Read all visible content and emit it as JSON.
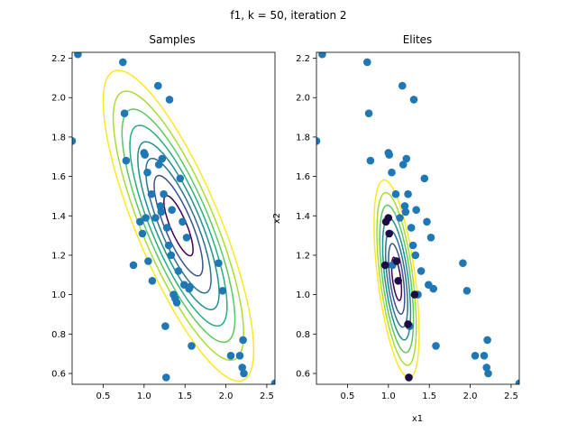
{
  "figure": {
    "suptitle": "f1, k = 50, iteration 2"
  },
  "colors": {
    "sample_point": "#1f77b4",
    "elite_point": "#1b0c41",
    "contour_levels": [
      "#440154",
      "#3b528b",
      "#2c728e",
      "#21908d",
      "#27ad81",
      "#5dc863",
      "#aadc32",
      "#fde725"
    ]
  },
  "chart_data": [
    {
      "type": "scatter",
      "title": "Samples",
      "xlabel": "",
      "ylabel": "",
      "xlim": [
        0.12,
        2.6
      ],
      "ylim": [
        0.545,
        2.23
      ],
      "xticks": [
        "0.5",
        "1.0",
        "1.5",
        "2.0",
        "2.5"
      ],
      "yticks": [
        "0.6",
        "0.8",
        "1.0",
        "1.2",
        "1.4",
        "1.6",
        "1.8",
        "2.0",
        "2.2"
      ],
      "contour": {
        "center": [
          1.42,
          1.35
        ],
        "sx": 0.42,
        "sy": 0.36,
        "rho": -0.8,
        "levels": [
          0.18,
          0.5,
          0.9,
          1.4,
          2.0,
          2.7,
          3.6,
          4.8
        ]
      },
      "series": [
        {
          "points": [
            [
              0.12,
              1.78
            ],
            [
              0.19,
              2.22
            ],
            [
              0.74,
              2.18
            ],
            [
              0.76,
              1.92
            ],
            [
              0.78,
              1.68
            ],
            [
              0.87,
              1.15
            ],
            [
              0.95,
              1.37
            ],
            [
              0.98,
              1.31
            ],
            [
              1.0,
              1.72
            ],
            [
              1.01,
              1.71
            ],
            [
              1.02,
              1.39
            ],
            [
              1.04,
              1.62
            ],
            [
              1.05,
              1.17
            ],
            [
              1.09,
              1.51
            ],
            [
              1.1,
              1.07
            ],
            [
              1.14,
              1.39
            ],
            [
              1.17,
              2.06
            ],
            [
              1.18,
              1.66
            ],
            [
              1.2,
              1.45
            ],
            [
              1.21,
              1.42
            ],
            [
              1.22,
              1.69
            ],
            [
              1.24,
              1.51
            ],
            [
              1.26,
              0.84
            ],
            [
              1.27,
              0.58
            ],
            [
              1.28,
              1.34
            ],
            [
              1.3,
              1.25
            ],
            [
              1.31,
              1.99
            ],
            [
              1.33,
              1.2
            ],
            [
              1.34,
              1.43
            ],
            [
              1.36,
              1.0
            ],
            [
              1.38,
              0.98
            ],
            [
              1.4,
              0.96
            ],
            [
              1.42,
              1.12
            ],
            [
              1.44,
              1.59
            ],
            [
              1.47,
              1.37
            ],
            [
              1.49,
              1.05
            ],
            [
              1.52,
              1.29
            ],
            [
              1.55,
              1.03
            ],
            [
              1.56,
              1.04
            ],
            [
              1.58,
              0.74
            ],
            [
              1.91,
              1.16
            ],
            [
              1.96,
              1.02
            ],
            [
              2.06,
              0.69
            ],
            [
              2.17,
              0.69
            ],
            [
              2.2,
              0.63
            ],
            [
              2.21,
              0.77
            ],
            [
              2.22,
              0.6
            ],
            [
              2.6,
              0.55
            ]
          ]
        }
      ]
    },
    {
      "type": "scatter",
      "title": "Elites",
      "xlabel": "x1",
      "ylabel": "x2",
      "xlim": [
        0.12,
        2.6
      ],
      "ylim": [
        0.545,
        2.23
      ],
      "xticks": [
        "0.5",
        "1.0",
        "1.5",
        "2.0",
        "2.5"
      ],
      "yticks": [
        "0.6",
        "0.8",
        "1.0",
        "1.2",
        "1.4",
        "1.6",
        "1.8",
        "2.0",
        "2.2"
      ],
      "contour": {
        "center": [
          1.1,
          1.08
        ],
        "sx": 0.11,
        "sy": 0.2,
        "rho": -0.55,
        "levels": [
          0.3,
          0.8,
          1.5,
          2.4,
          3.5,
          4.8,
          6.3
        ]
      },
      "series": [
        {
          "points": [
            [
              0.12,
              1.78
            ],
            [
              0.19,
              2.22
            ],
            [
              0.74,
              2.18
            ],
            [
              0.76,
              1.92
            ],
            [
              0.78,
              1.68
            ],
            [
              1.0,
              1.72
            ],
            [
              1.01,
              1.71
            ],
            [
              1.04,
              1.62
            ],
            [
              1.05,
              1.15
            ],
            [
              1.09,
              1.51
            ],
            [
              1.14,
              1.39
            ],
            [
              1.17,
              2.06
            ],
            [
              1.18,
              1.66
            ],
            [
              1.2,
              1.45
            ],
            [
              1.21,
              1.42
            ],
            [
              1.22,
              1.69
            ],
            [
              1.24,
              1.51
            ],
            [
              1.26,
              0.84
            ],
            [
              1.28,
              1.34
            ],
            [
              1.3,
              1.25
            ],
            [
              1.31,
              1.99
            ],
            [
              1.33,
              1.2
            ],
            [
              1.34,
              1.43
            ],
            [
              1.36,
              1.0
            ],
            [
              1.4,
              1.12
            ],
            [
              1.44,
              1.59
            ],
            [
              1.47,
              1.37
            ],
            [
              1.49,
              1.05
            ],
            [
              1.52,
              1.29
            ],
            [
              1.55,
              1.03
            ],
            [
              1.58,
              0.74
            ],
            [
              1.91,
              1.16
            ],
            [
              1.96,
              1.02
            ],
            [
              2.06,
              0.69
            ],
            [
              2.17,
              0.69
            ],
            [
              2.2,
              0.63
            ],
            [
              2.21,
              0.77
            ],
            [
              2.22,
              0.6
            ],
            [
              2.6,
              0.55
            ]
          ]
        },
        {
          "elite": true,
          "points": [
            [
              0.97,
              1.37
            ],
            [
              1.0,
              1.39
            ],
            [
              1.01,
              1.31
            ],
            [
              1.1,
              1.17
            ],
            [
              1.12,
              1.07
            ],
            [
              1.24,
              0.85
            ],
            [
              1.25,
              0.58
            ],
            [
              1.32,
              1.0
            ],
            [
              0.96,
              1.15
            ]
          ]
        }
      ]
    }
  ]
}
